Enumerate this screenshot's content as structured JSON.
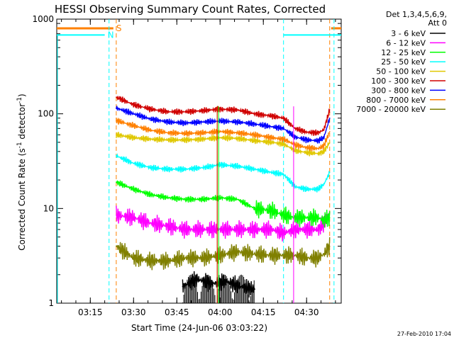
{
  "chart_data": {
    "type": "line",
    "title": "HESSI Observing Summary Count Rates, Corrected",
    "xlabel": "Start Time (24-Jun-06 03:03:22)",
    "ylabel": "Corrected Count Rate (s⁻¹ detector⁻¹)",
    "yscale": "log",
    "ylim": [
      1,
      1000
    ],
    "xlim": [
      "03:03:22",
      "04:42:00"
    ],
    "x_ticks": [
      "03:15",
      "03:30",
      "03:45",
      "04:00",
      "04:15",
      "04:30"
    ],
    "y_ticks": [
      "1",
      "10",
      "100",
      "1000"
    ],
    "grid": false,
    "legend_position": "right",
    "legend_header": [
      "Det 1,3,4,5,6,9,",
      "Att 0"
    ],
    "footer": "27-Feb-2010 17:04",
    "flags": [
      {
        "label": "S",
        "color": "#ff8000",
        "y": 800,
        "x_end": "03:23:00",
        "x_resume": "04:38:30",
        "boundaries": [
          "03:24:00",
          "04:38:00"
        ]
      },
      {
        "label": "N",
        "color": "#00ffff",
        "y": 680,
        "x_end": "03:20:00",
        "x_resume": "04:22:00",
        "boundaries": [
          "03:21:30",
          "04:22:00",
          "04:39:30"
        ]
      }
    ],
    "markers": [
      {
        "color": "#00ff00",
        "x": "03:59:30"
      },
      {
        "color": "#ffd000",
        "x": "03:59:00"
      },
      {
        "color": "#d00000",
        "x": "03:59:00"
      },
      {
        "color": "#ff00ff",
        "x": "04:25:30"
      }
    ],
    "series": [
      {
        "name": "3 - 6 keV",
        "color": "#000000",
        "x": [
          "03:47",
          "03:52",
          "03:57",
          "04:02",
          "04:07",
          "04:12"
        ],
        "values": [
          1.5,
          1.8,
          1.6,
          1.7,
          1.5,
          1.4
        ]
      },
      {
        "name": "6 - 12 keV",
        "color": "#ff00ff",
        "x": [
          "03:24",
          "03:30",
          "03:36",
          "03:42",
          "03:48",
          "03:54",
          "04:00",
          "04:06",
          "04:12",
          "04:18",
          "04:22",
          "04:26",
          "04:30",
          "04:34",
          "04:36",
          "04:38"
        ],
        "values": [
          8.5,
          8.0,
          7.0,
          6.5,
          6.0,
          6.0,
          6.0,
          6.0,
          6.0,
          6.0,
          5.5,
          6.0,
          6.0,
          6.0,
          7.0,
          9.0
        ]
      },
      {
        "name": "12 - 25 keV",
        "color": "#00ff00",
        "x": [
          "03:24",
          "03:30",
          "03:36",
          "03:42",
          "03:48",
          "03:54",
          "04:00",
          "04:06",
          "04:12",
          "04:18",
          "04:22",
          "04:26",
          "04:30",
          "04:34",
          "04:36",
          "04:38"
        ],
        "values": [
          19,
          16,
          14,
          13,
          12.5,
          12.5,
          13,
          12.5,
          10,
          9.5,
          8.5,
          8.0,
          8.0,
          8.0,
          7.5,
          8.0
        ]
      },
      {
        "name": "25 - 50 keV",
        "color": "#00ffff",
        "x": [
          "03:24",
          "03:30",
          "03:36",
          "03:42",
          "03:48",
          "03:54",
          "04:00",
          "04:06",
          "04:12",
          "04:18",
          "04:22",
          "04:26",
          "04:30",
          "04:34",
          "04:36",
          "04:38"
        ],
        "values": [
          36,
          30,
          27,
          26,
          26,
          27,
          29,
          28,
          26,
          24,
          23,
          17,
          16,
          16,
          18,
          24
        ]
      },
      {
        "name": "50 - 100 keV",
        "color": "#e0c800",
        "x": [
          "03:24",
          "03:30",
          "03:36",
          "03:42",
          "03:48",
          "03:54",
          "04:00",
          "04:06",
          "04:12",
          "04:18",
          "04:22",
          "04:26",
          "04:30",
          "04:34",
          "04:36",
          "04:38"
        ],
        "values": [
          60,
          56,
          54,
          53,
          53,
          54,
          56,
          55,
          52,
          50,
          48,
          41,
          39,
          38,
          40,
          50
        ]
      },
      {
        "name": "100 - 300 keV",
        "color": "#d00000",
        "x": [
          "03:24",
          "03:30",
          "03:36",
          "03:42",
          "03:48",
          "03:54",
          "04:00",
          "04:06",
          "04:12",
          "04:18",
          "04:22",
          "04:26",
          "04:30",
          "04:34",
          "04:36",
          "04:38"
        ],
        "values": [
          150,
          125,
          112,
          105,
          105,
          108,
          112,
          110,
          100,
          95,
          90,
          70,
          64,
          63,
          68,
          110
        ]
      },
      {
        "name": "300 - 800 keV",
        "color": "#0000ff",
        "x": [
          "03:24",
          "03:30",
          "03:36",
          "03:42",
          "03:48",
          "03:54",
          "04:00",
          "04:06",
          "04:12",
          "04:18",
          "04:22",
          "04:26",
          "04:30",
          "04:34",
          "04:36",
          "04:38"
        ],
        "values": [
          115,
          100,
          88,
          82,
          80,
          82,
          84,
          82,
          78,
          73,
          70,
          57,
          53,
          52,
          56,
          90
        ]
      },
      {
        "name": "800 - 7000 keV",
        "color": "#ff8000",
        "x": [
          "03:24",
          "03:30",
          "03:36",
          "03:42",
          "03:48",
          "03:54",
          "04:00",
          "04:06",
          "04:12",
          "04:18",
          "04:22",
          "04:26",
          "04:30",
          "04:34",
          "04:36",
          "04:38"
        ],
        "values": [
          85,
          75,
          67,
          63,
          62,
          63,
          65,
          63,
          60,
          56,
          54,
          47,
          44,
          43,
          46,
          65
        ]
      },
      {
        "name": "7000 - 20000 keV",
        "color": "#808000",
        "x": [
          "03:24",
          "03:30",
          "03:36",
          "03:42",
          "03:48",
          "03:54",
          "04:00",
          "04:06",
          "04:12",
          "04:18",
          "04:22",
          "04:26",
          "04:30",
          "04:34",
          "04:36",
          "04:38"
        ],
        "values": [
          4.0,
          3.0,
          2.8,
          2.8,
          3.0,
          3.0,
          3.2,
          3.5,
          3.3,
          3.2,
          3.2,
          3.2,
          3.0,
          3.0,
          3.3,
          4.0
        ]
      }
    ]
  }
}
